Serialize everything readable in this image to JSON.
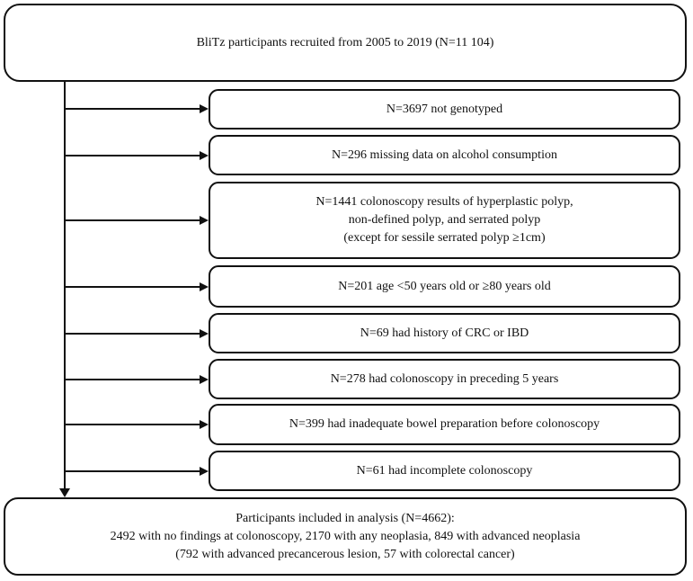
{
  "flowchart": {
    "top_box": {
      "text": "BliTz participants recruited from 2005 to 2019 (N=11 104)"
    },
    "exclusion_boxes": [
      {
        "id": "not-genotyped",
        "lines": [
          "N=3697 not genotyped"
        ]
      },
      {
        "id": "missing-alcohol-data",
        "lines": [
          "N=296 missing data on alcohol consumption"
        ]
      },
      {
        "id": "polyp-results",
        "lines": [
          "N=1441 colonoscopy results of hyperplastic polyp,",
          "non-defined polyp, and serrated polyp",
          "(except for sessile serrated polyp ≥1cm)"
        ]
      },
      {
        "id": "age-out-of-range",
        "lines": [
          "N=201 age <50 years old or ≥80 years old"
        ]
      },
      {
        "id": "history-crc-ibd",
        "lines": [
          "N=69 had history of CRC or IBD"
        ]
      },
      {
        "id": "prior-colonoscopy",
        "lines": [
          "N=278 had colonoscopy in preceding 5 years"
        ]
      },
      {
        "id": "inadequate-bowel-prep",
        "lines": [
          "N=399 had inadequate bowel preparation before colonoscopy"
        ]
      },
      {
        "id": "incomplete-colonoscopy",
        "lines": [
          "N=61 had incomplete colonoscopy"
        ]
      }
    ],
    "bottom_box": {
      "lines": [
        "Participants included in analysis (N=4662):",
        "2492 with no findings at colonoscopy, 2170 with any neoplasia, 849 with advanced neoplasia",
        "(792 with advanced precancerous lesion, 57 with colorectal cancer)"
      ]
    }
  },
  "colors": {
    "border": "#111111",
    "background": "#ffffff",
    "text": "#111111"
  }
}
